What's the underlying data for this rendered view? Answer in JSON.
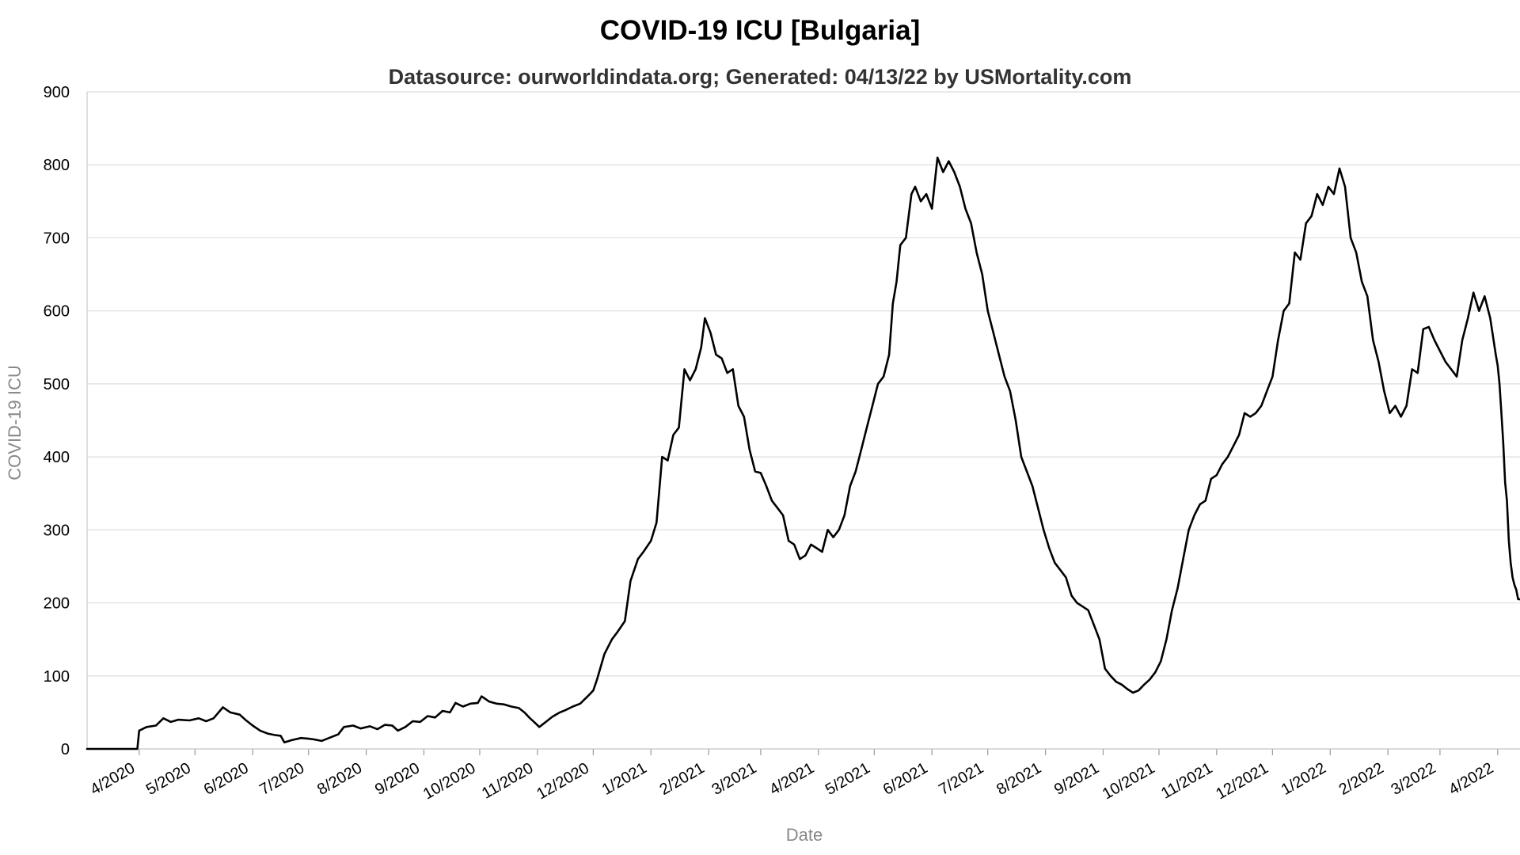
{
  "chart_data": {
    "type": "line",
    "title": "COVID-19 ICU [Bulgaria]",
    "subtitle": "Datasource: ourworldindata.org; Generated: 04/13/22 by USMortality.com",
    "xlabel": "Date",
    "ylabel": "COVID-19 ICU",
    "x_range": [
      "2020-03-04",
      "2022-04-13"
    ],
    "ylim": [
      0,
      900
    ],
    "y_ticks": [
      0,
      100,
      200,
      300,
      400,
      500,
      600,
      700,
      800,
      900
    ],
    "x_ticks": [
      {
        "label": "4/2020",
        "date": "2020-04-01"
      },
      {
        "label": "5/2020",
        "date": "2020-05-01"
      },
      {
        "label": "6/2020",
        "date": "2020-06-01"
      },
      {
        "label": "7/2020",
        "date": "2020-07-01"
      },
      {
        "label": "8/2020",
        "date": "2020-08-01"
      },
      {
        "label": "9/2020",
        "date": "2020-09-01"
      },
      {
        "label": "10/2020",
        "date": "2020-10-01"
      },
      {
        "label": "11/2020",
        "date": "2020-11-01"
      },
      {
        "label": "12/2020",
        "date": "2020-12-01"
      },
      {
        "label": "1/2021",
        "date": "2021-01-01"
      },
      {
        "label": "2/2021",
        "date": "2021-02-01"
      },
      {
        "label": "3/2021",
        "date": "2021-03-01"
      },
      {
        "label": "4/2021",
        "date": "2021-04-01"
      },
      {
        "label": "5/2021",
        "date": "2021-05-01"
      },
      {
        "label": "6/2021",
        "date": "2021-06-01"
      },
      {
        "label": "7/2021",
        "date": "2021-07-01"
      },
      {
        "label": "8/2021",
        "date": "2021-08-01"
      },
      {
        "label": "9/2021",
        "date": "2021-09-01"
      },
      {
        "label": "10/2021",
        "date": "2021-10-01"
      },
      {
        "label": "11/2021",
        "date": "2021-11-01"
      },
      {
        "label": "12/2021",
        "date": "2021-12-01"
      },
      {
        "label": "1/2022",
        "date": "2022-01-01"
      },
      {
        "label": "2/2022",
        "date": "2022-02-01"
      },
      {
        "label": "3/2022",
        "date": "2022-03-01"
      },
      {
        "label": "4/2022",
        "date": "2022-04-01"
      }
    ],
    "grid": true,
    "legend": "none",
    "series": [
      {
        "color": "#000000",
        "points": [
          [
            "2020-03-04",
            0
          ],
          [
            "2020-03-31",
            0
          ],
          [
            "2020-04-01",
            25
          ],
          [
            "2020-04-05",
            30
          ],
          [
            "2020-04-10",
            32
          ],
          [
            "2020-04-14",
            42
          ],
          [
            "2020-04-18",
            37
          ],
          [
            "2020-04-22",
            40
          ],
          [
            "2020-04-28",
            39
          ],
          [
            "2020-05-03",
            42
          ],
          [
            "2020-05-07",
            38
          ],
          [
            "2020-05-11",
            42
          ],
          [
            "2020-05-16",
            57
          ],
          [
            "2020-05-20",
            50
          ],
          [
            "2020-05-25",
            47
          ],
          [
            "2020-05-28",
            40
          ],
          [
            "2020-06-01",
            32
          ],
          [
            "2020-06-05",
            25
          ],
          [
            "2020-06-09",
            21
          ],
          [
            "2020-06-13",
            19
          ],
          [
            "2020-06-16",
            18
          ],
          [
            "2020-06-18",
            9
          ],
          [
            "2020-06-22",
            12
          ],
          [
            "2020-06-27",
            15
          ],
          [
            "2020-07-01",
            14
          ],
          [
            "2020-07-04",
            13
          ],
          [
            "2020-07-08",
            11
          ],
          [
            "2020-07-12",
            15
          ],
          [
            "2020-07-17",
            20
          ],
          [
            "2020-07-20",
            30
          ],
          [
            "2020-07-25",
            32
          ],
          [
            "2020-07-29",
            28
          ],
          [
            "2020-08-03",
            31
          ],
          [
            "2020-08-07",
            27
          ],
          [
            "2020-08-11",
            33
          ],
          [
            "2020-08-15",
            32
          ],
          [
            "2020-08-18",
            25
          ],
          [
            "2020-08-22",
            30
          ],
          [
            "2020-08-26",
            38
          ],
          [
            "2020-08-30",
            37
          ],
          [
            "2020-09-03",
            45
          ],
          [
            "2020-09-07",
            43
          ],
          [
            "2020-09-11",
            52
          ],
          [
            "2020-09-15",
            50
          ],
          [
            "2020-09-18",
            63
          ],
          [
            "2020-09-22",
            58
          ],
          [
            "2020-09-26",
            62
          ],
          [
            "2020-09-30",
            63
          ],
          [
            "2020-10-02",
            72
          ],
          [
            "2020-10-06",
            65
          ],
          [
            "2020-10-10",
            62
          ],
          [
            "2020-10-14",
            61
          ],
          [
            "2020-10-18",
            58
          ],
          [
            "2020-10-22",
            56
          ],
          [
            "2020-10-25",
            50
          ],
          [
            "2020-10-28",
            42
          ],
          [
            "2020-10-31",
            35
          ],
          [
            "2020-11-02",
            30
          ],
          [
            "2020-11-06",
            38
          ],
          [
            "2020-11-09",
            44
          ],
          [
            "2020-11-13",
            50
          ],
          [
            "2020-11-16",
            53
          ],
          [
            "2020-11-20",
            58
          ],
          [
            "2020-11-24",
            62
          ],
          [
            "2020-11-28",
            72
          ],
          [
            "2020-12-01",
            80
          ],
          [
            "2020-12-03",
            95
          ],
          [
            "2020-12-07",
            130
          ],
          [
            "2020-12-11",
            150
          ],
          [
            "2020-12-14",
            160
          ],
          [
            "2020-12-18",
            175
          ],
          [
            "2020-12-21",
            230
          ],
          [
            "2020-12-25",
            260
          ],
          [
            "2020-12-28",
            270
          ],
          [
            "2021-01-01",
            285
          ],
          [
            "2021-01-04",
            310
          ],
          [
            "2021-01-07",
            400
          ],
          [
            "2021-01-10",
            395
          ],
          [
            "2021-01-13",
            430
          ],
          [
            "2021-01-16",
            440
          ],
          [
            "2021-01-19",
            520
          ],
          [
            "2021-01-22",
            505
          ],
          [
            "2021-01-25",
            520
          ],
          [
            "2021-01-28",
            550
          ],
          [
            "2021-01-30",
            590
          ],
          [
            "2021-02-02",
            570
          ],
          [
            "2021-02-05",
            540
          ],
          [
            "2021-02-08",
            535
          ],
          [
            "2021-02-11",
            515
          ],
          [
            "2021-02-14",
            520
          ],
          [
            "2021-02-17",
            470
          ],
          [
            "2021-02-20",
            455
          ],
          [
            "2021-02-23",
            410
          ],
          [
            "2021-02-26",
            380
          ],
          [
            "2021-03-01",
            378
          ],
          [
            "2021-03-04",
            360
          ],
          [
            "2021-03-07",
            340
          ],
          [
            "2021-03-10",
            330
          ],
          [
            "2021-03-13",
            320
          ],
          [
            "2021-03-16",
            285
          ],
          [
            "2021-03-19",
            280
          ],
          [
            "2021-03-22",
            260
          ],
          [
            "2021-03-25",
            265
          ],
          [
            "2021-03-28",
            280
          ],
          [
            "2021-03-31",
            275
          ],
          [
            "2021-04-03",
            270
          ],
          [
            "2021-04-06",
            300
          ],
          [
            "2021-04-09",
            290
          ],
          [
            "2021-04-12",
            300
          ],
          [
            "2021-04-15",
            320
          ],
          [
            "2021-04-18",
            360
          ],
          [
            "2021-04-21",
            380
          ],
          [
            "2021-04-24",
            410
          ],
          [
            "2021-04-27",
            440
          ],
          [
            "2021-04-30",
            470
          ],
          [
            "2021-05-03",
            500
          ],
          [
            "2021-05-06",
            510
          ],
          [
            "2021-05-09",
            540
          ],
          [
            "2021-05-11",
            610
          ],
          [
            "2021-05-13",
            640
          ],
          [
            "2021-05-15",
            690
          ],
          [
            "2021-05-18",
            700
          ],
          [
            "2021-05-21",
            760
          ],
          [
            "2021-05-23",
            770
          ],
          [
            "2021-05-26",
            750
          ],
          [
            "2021-05-29",
            760
          ],
          [
            "2021-06-01",
            740
          ],
          [
            "2021-06-04",
            810
          ],
          [
            "2021-06-07",
            790
          ],
          [
            "2021-06-10",
            805
          ],
          [
            "2021-06-13",
            790
          ],
          [
            "2021-06-16",
            770
          ],
          [
            "2021-06-19",
            740
          ],
          [
            "2021-06-22",
            720
          ],
          [
            "2021-06-25",
            680
          ],
          [
            "2021-06-28",
            650
          ],
          [
            "2021-07-01",
            600
          ],
          [
            "2021-07-04",
            570
          ],
          [
            "2021-07-07",
            540
          ],
          [
            "2021-07-10",
            510
          ],
          [
            "2021-07-13",
            490
          ],
          [
            "2021-07-16",
            450
          ],
          [
            "2021-07-19",
            400
          ],
          [
            "2021-07-22",
            380
          ],
          [
            "2021-07-25",
            360
          ],
          [
            "2021-07-28",
            330
          ],
          [
            "2021-07-31",
            300
          ],
          [
            "2021-08-03",
            275
          ],
          [
            "2021-08-06",
            255
          ],
          [
            "2021-08-09",
            245
          ],
          [
            "2021-08-12",
            235
          ],
          [
            "2021-08-15",
            210
          ],
          [
            "2021-08-18",
            200
          ],
          [
            "2021-08-21",
            195
          ],
          [
            "2021-08-24",
            190
          ],
          [
            "2021-08-27",
            170
          ],
          [
            "2021-08-30",
            150
          ],
          [
            "2021-09-02",
            110
          ],
          [
            "2021-09-05",
            100
          ],
          [
            "2021-09-08",
            92
          ],
          [
            "2021-09-11",
            88
          ],
          [
            "2021-09-14",
            82
          ],
          [
            "2021-09-17",
            77
          ],
          [
            "2021-09-20",
            80
          ],
          [
            "2021-09-23",
            88
          ],
          [
            "2021-09-26",
            95
          ],
          [
            "2021-09-29",
            105
          ],
          [
            "2021-10-02",
            120
          ],
          [
            "2021-10-05",
            150
          ],
          [
            "2021-10-08",
            190
          ],
          [
            "2021-10-11",
            220
          ],
          [
            "2021-10-14",
            260
          ],
          [
            "2021-10-17",
            300
          ],
          [
            "2021-10-20",
            320
          ],
          [
            "2021-10-23",
            335
          ],
          [
            "2021-10-26",
            340
          ],
          [
            "2021-10-29",
            370
          ],
          [
            "2021-11-01",
            375
          ],
          [
            "2021-11-04",
            390
          ],
          [
            "2021-11-07",
            400
          ],
          [
            "2021-11-10",
            415
          ],
          [
            "2021-11-13",
            430
          ],
          [
            "2021-11-16",
            460
          ],
          [
            "2021-11-19",
            455
          ],
          [
            "2021-11-22",
            460
          ],
          [
            "2021-11-25",
            470
          ],
          [
            "2021-11-28",
            490
          ],
          [
            "2021-12-01",
            510
          ],
          [
            "2021-12-04",
            560
          ],
          [
            "2021-12-07",
            600
          ],
          [
            "2021-12-10",
            610
          ],
          [
            "2021-12-13",
            680
          ],
          [
            "2021-12-16",
            670
          ],
          [
            "2021-12-19",
            720
          ],
          [
            "2021-12-22",
            730
          ],
          [
            "2021-12-25",
            760
          ],
          [
            "2021-12-28",
            745
          ],
          [
            "2021-12-31",
            770
          ],
          [
            "2022-01-03",
            760
          ],
          [
            "2022-01-06",
            795
          ],
          [
            "2022-01-09",
            770
          ],
          [
            "2022-01-12",
            700
          ],
          [
            "2022-01-15",
            680
          ],
          [
            "2022-01-18",
            640
          ],
          [
            "2022-01-21",
            620
          ],
          [
            "2022-01-24",
            560
          ],
          [
            "2022-01-27",
            530
          ],
          [
            "2022-01-30",
            490
          ],
          [
            "2022-02-02",
            460
          ],
          [
            "2022-02-05",
            470
          ],
          [
            "2022-02-08",
            455
          ],
          [
            "2022-02-11",
            470
          ],
          [
            "2022-02-14",
            520
          ],
          [
            "2022-02-17",
            515
          ],
          [
            "2022-02-20",
            575
          ],
          [
            "2022-02-23",
            578
          ],
          [
            "2022-02-26",
            560
          ],
          [
            "2022-03-01",
            545
          ],
          [
            "2022-03-04",
            530
          ],
          [
            "2022-03-07",
            520
          ],
          [
            "2022-03-10",
            510
          ],
          [
            "2022-03-13",
            560
          ],
          [
            "2022-03-16",
            590
          ],
          [
            "2022-03-19",
            625
          ],
          [
            "2022-03-22",
            600
          ],
          [
            "2022-03-25",
            620
          ],
          [
            "2022-03-28",
            590
          ],
          [
            "2022-03-31",
            540
          ],
          [
            "2022-04-01",
            525
          ],
          [
            "2022-04-02",
            500
          ],
          [
            "2022-04-03",
            460
          ],
          [
            "2022-04-04",
            420
          ],
          [
            "2022-04-05",
            365
          ],
          [
            "2022-04-06",
            340
          ],
          [
            "2022-04-07",
            285
          ],
          [
            "2022-04-08",
            255
          ],
          [
            "2022-04-09",
            235
          ],
          [
            "2022-04-10",
            225
          ],
          [
            "2022-04-11",
            218
          ],
          [
            "2022-04-12",
            205
          ],
          [
            "2022-04-13",
            205
          ]
        ]
      }
    ]
  }
}
